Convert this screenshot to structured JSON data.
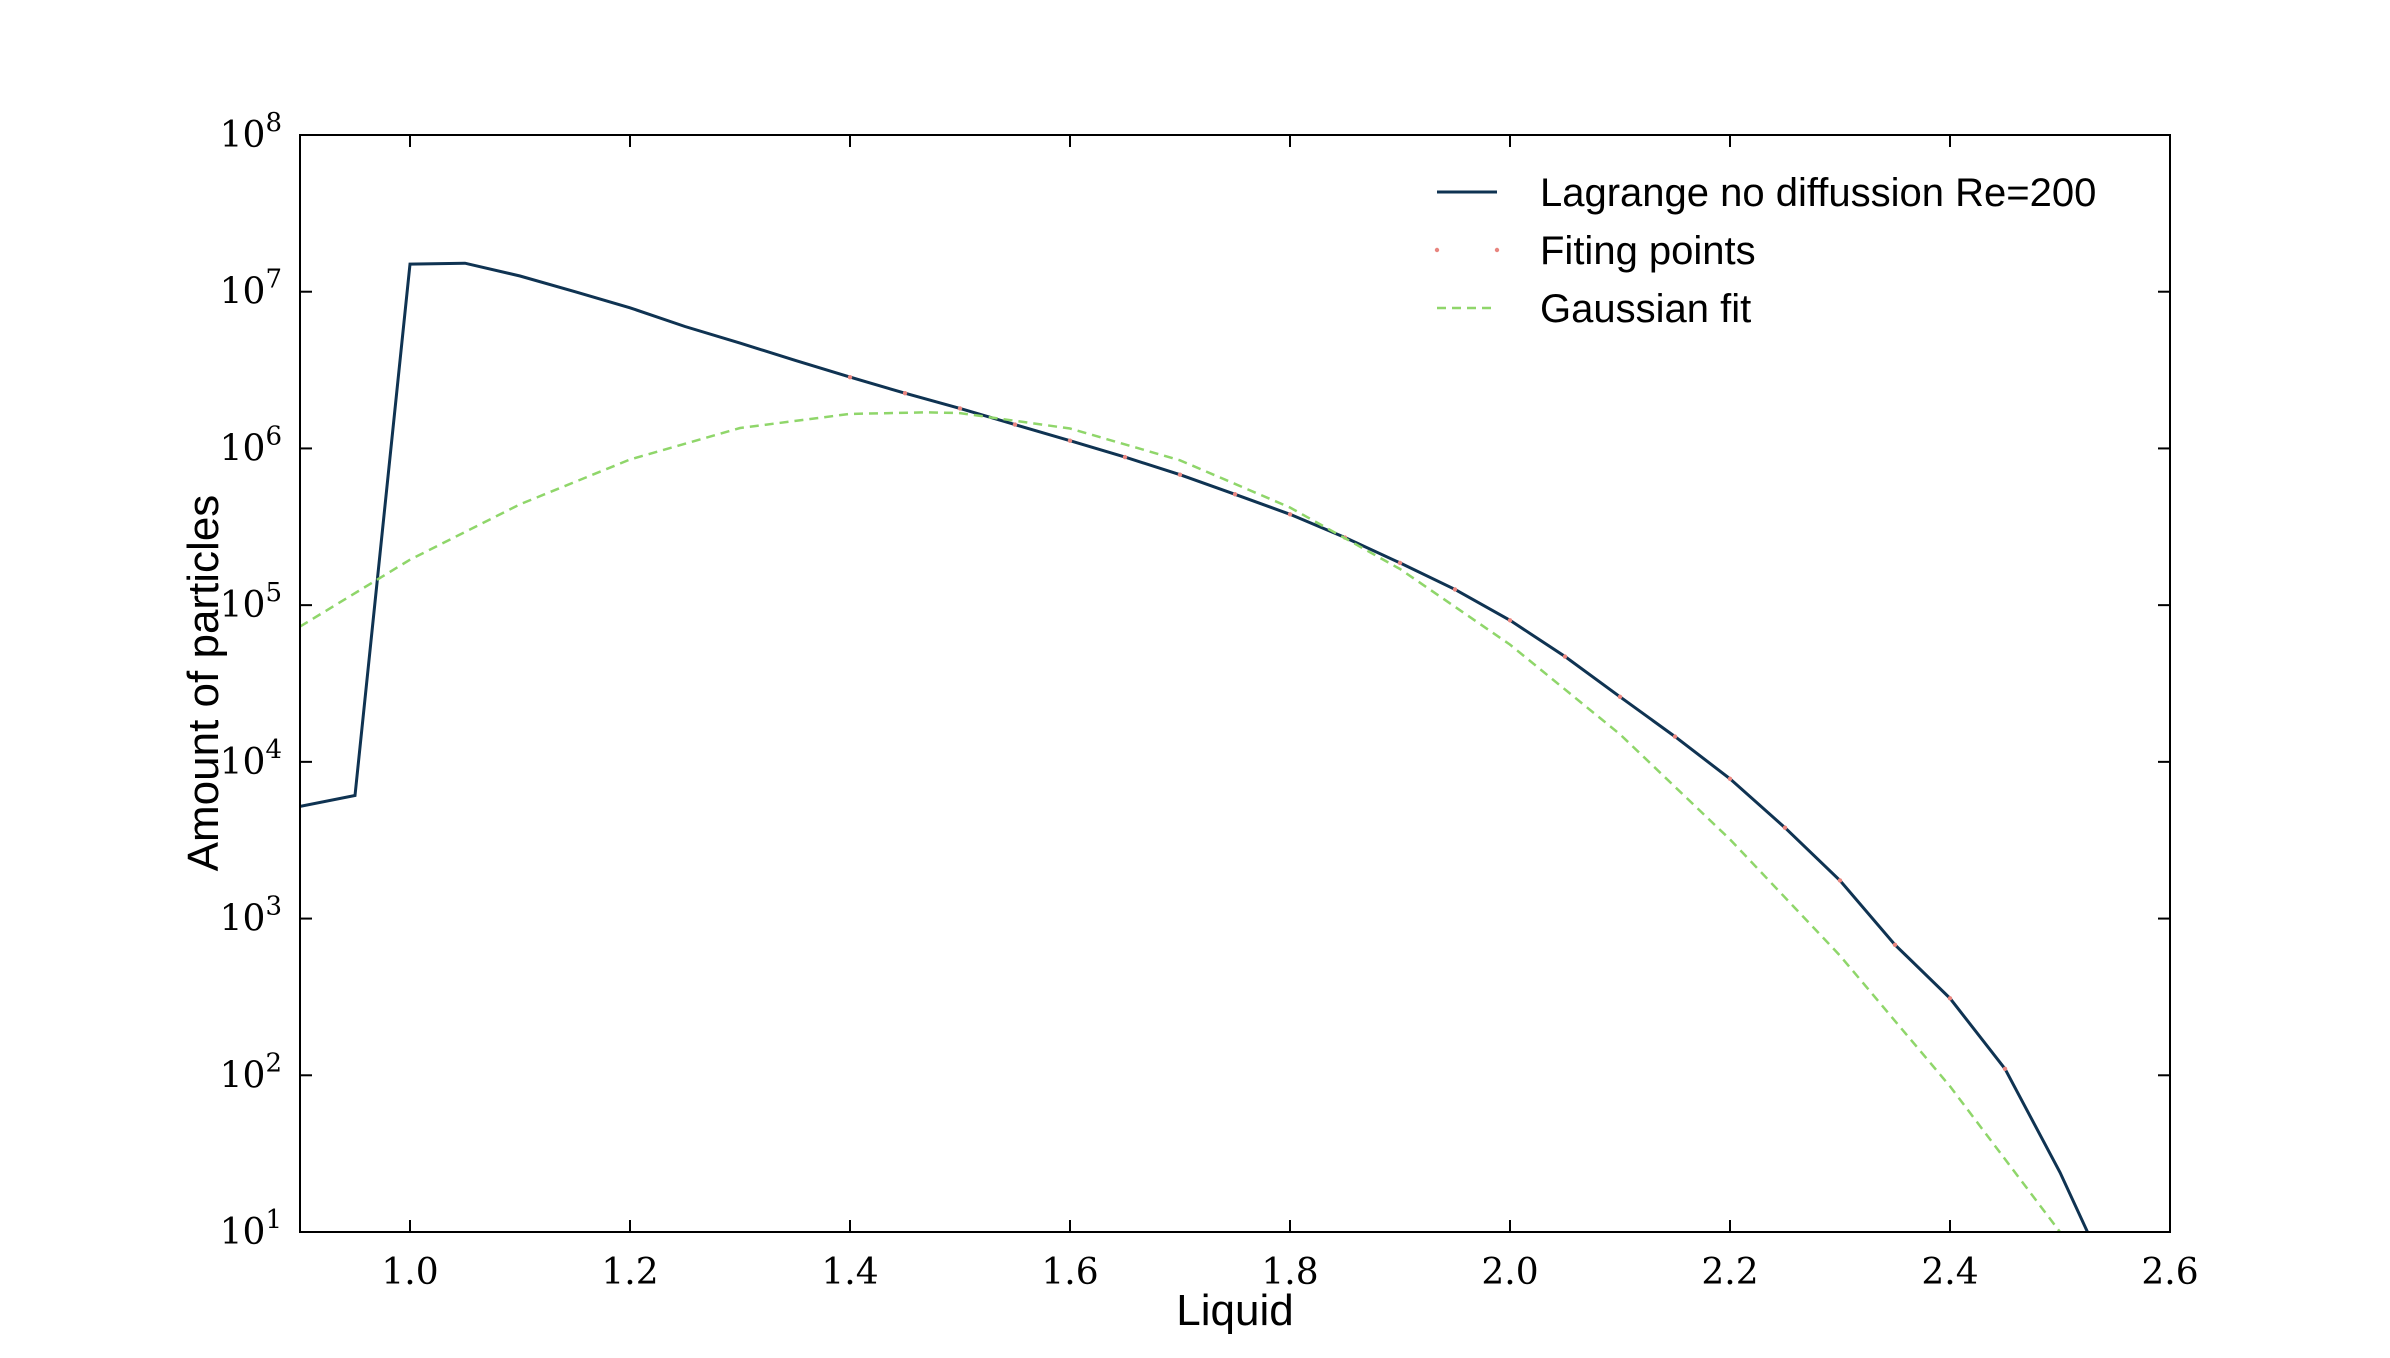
{
  "chart_data": {
    "type": "line",
    "title": "",
    "xlabel": "Liquid",
    "ylabel": "Amount of particles",
    "xlim": [
      0.9,
      2.6
    ],
    "ylim": [
      10,
      100000000
    ],
    "yscale": "log",
    "grid": false,
    "legend_position": "top-right",
    "x_ticks": [
      "1.0",
      "1.2",
      "1.4",
      "1.6",
      "1.8",
      "2.0",
      "2.2",
      "2.4",
      "2.6"
    ],
    "x_tick_values": [
      1.0,
      1.2,
      1.4,
      1.6,
      1.8,
      2.0,
      2.2,
      2.4,
      2.6
    ],
    "y_ticks": [
      {
        "value": 10,
        "base": "10",
        "exp": "1"
      },
      {
        "value": 100,
        "base": "10",
        "exp": "2"
      },
      {
        "value": 1000,
        "base": "10",
        "exp": "3"
      },
      {
        "value": 10000,
        "base": "10",
        "exp": "4"
      },
      {
        "value": 100000,
        "base": "10",
        "exp": "5"
      },
      {
        "value": 1000000,
        "base": "10",
        "exp": "6"
      },
      {
        "value": 10000000,
        "base": "10",
        "exp": "7"
      },
      {
        "value": 100000000,
        "base": "10",
        "exp": "8"
      }
    ],
    "series": [
      {
        "name": "Lagrange no diffussion Re=200",
        "style": "solid",
        "color": "#0f3352",
        "x": [
          0.9,
          0.95,
          1.0,
          1.05,
          1.1,
          1.15,
          1.2,
          1.25,
          1.3,
          1.35,
          1.4,
          1.45,
          1.5,
          1.55,
          1.6,
          1.65,
          1.7,
          1.75,
          1.8,
          1.85,
          1.9,
          1.95,
          2.0,
          2.05,
          2.1,
          2.15,
          2.2,
          2.25,
          2.3,
          2.35,
          2.4,
          2.45,
          2.5,
          2.525
        ],
        "y": [
          5200,
          6100,
          15000000,
          15200000,
          12600000,
          10000000,
          7900000,
          6000000,
          4700000,
          3650000,
          2850000,
          2250000,
          1800000,
          1420000,
          1120000,
          880000,
          680000,
          510000,
          380000,
          270000,
          186000,
          126000,
          80000,
          47000,
          26000,
          14500,
          7800,
          3800,
          1750,
          680,
          310,
          110,
          24,
          10
        ]
      },
      {
        "name": "Fiting points",
        "style": "dots",
        "color": "#e8857f",
        "x": [
          1.4,
          1.45,
          1.5,
          1.55,
          1.6,
          1.65,
          1.7,
          1.75,
          1.8,
          1.85,
          1.9,
          1.95,
          2.0,
          2.05,
          2.1,
          2.15,
          2.2,
          2.25,
          2.3,
          2.35,
          2.4,
          2.45
        ],
        "y": [
          2850000,
          2250000,
          1800000,
          1420000,
          1120000,
          880000,
          680000,
          510000,
          380000,
          270000,
          186000,
          126000,
          80000,
          47000,
          26000,
          14500,
          7800,
          3800,
          1750,
          680,
          310,
          110
        ]
      },
      {
        "name": "Gaussian fit",
        "style": "dashed",
        "color": "#8fd66a",
        "x": [
          0.9,
          1.0,
          1.1,
          1.2,
          1.3,
          1.4,
          1.47,
          1.5,
          1.6,
          1.7,
          1.8,
          1.9,
          2.0,
          2.1,
          2.2,
          2.3,
          2.4,
          2.5,
          2.54
        ],
        "y": [
          73000,
          195000,
          440000,
          850000,
          1350000,
          1660000,
          1700000,
          1680000,
          1340000,
          840000,
          420000,
          170000,
          56000,
          15000,
          3200,
          580,
          85,
          10,
          4.5
        ]
      }
    ]
  }
}
